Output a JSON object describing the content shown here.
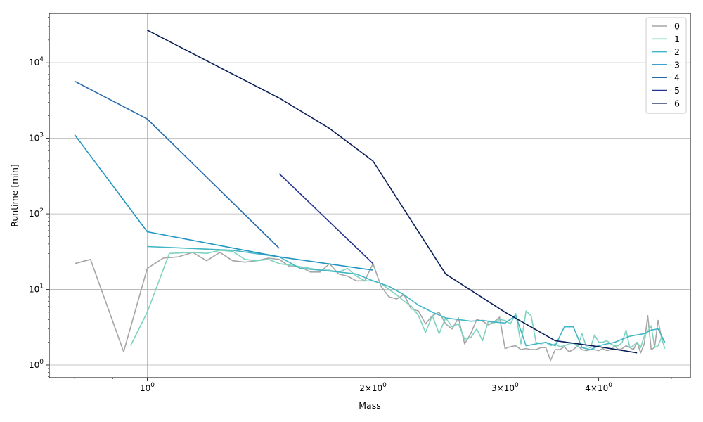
{
  "chart_data": {
    "type": "line",
    "title": "",
    "xlabel": "Mass",
    "ylabel": "Runtime [min]",
    "xscale": "log",
    "yscale": "log",
    "xlim": [
      0.74,
      5.3
    ],
    "ylim": [
      0.68,
      45000
    ],
    "grid": true,
    "legend_position": "top-right",
    "x_ticks": [
      {
        "value": 1,
        "base": "10",
        "exp": "0"
      },
      {
        "value": 2,
        "base": "2×10",
        "exp": "0"
      },
      {
        "value": 3,
        "base": "3×10",
        "exp": "0"
      },
      {
        "value": 4,
        "base": "4×10",
        "exp": "0"
      }
    ],
    "y_ticks": [
      {
        "value": 1,
        "base": "10",
        "exp": "0"
      },
      {
        "value": 10,
        "base": "10",
        "exp": "1"
      },
      {
        "value": 100,
        "base": "10",
        "exp": "2"
      },
      {
        "value": 1000,
        "base": "10",
        "exp": "3"
      },
      {
        "value": 10000,
        "base": "10",
        "exp": "4"
      }
    ],
    "series": [
      {
        "name": "0",
        "color": "#a6a6a6",
        "x": [
          0.8,
          0.84,
          0.93,
          1.0,
          1.05,
          1.1,
          1.15,
          1.2,
          1.25,
          1.3,
          1.35,
          1.4,
          1.45,
          1.5,
          1.55,
          1.6,
          1.65,
          1.7,
          1.75,
          1.8,
          1.85,
          1.9,
          1.95,
          2.0,
          2.05,
          2.1,
          2.15,
          2.2,
          2.25,
          2.3,
          2.35,
          2.4,
          2.45,
          2.5,
          2.55,
          2.6,
          2.65,
          2.7,
          2.75,
          2.8,
          2.85,
          2.9,
          2.95,
          3.0,
          3.05,
          3.1,
          3.15,
          3.2,
          3.25,
          3.3,
          3.35,
          3.4,
          3.45,
          3.5,
          3.55,
          3.6,
          3.65,
          3.7,
          3.75,
          3.8,
          3.85,
          3.9,
          3.95,
          4.0,
          4.05,
          4.1,
          4.15,
          4.2,
          4.25,
          4.3,
          4.35,
          4.4,
          4.45,
          4.5,
          4.55,
          4.6,
          4.65,
          4.7,
          4.75,
          4.8,
          4.85,
          4.9
        ],
        "y": [
          22,
          25,
          1.5,
          19,
          26,
          27,
          31,
          24,
          31,
          24,
          23,
          24,
          26,
          25,
          20,
          20,
          17,
          17,
          22,
          16,
          15,
          13,
          13,
          22,
          11,
          8.0,
          7.5,
          8.5,
          5.5,
          5.2,
          3.5,
          4.5,
          5.0,
          3.5,
          3.0,
          4.2,
          1.9,
          2.6,
          4.0,
          3.8,
          3.4,
          3.7,
          4.3,
          1.65,
          1.75,
          1.8,
          1.6,
          1.65,
          1.6,
          1.6,
          1.7,
          1.7,
          1.15,
          1.6,
          1.6,
          1.75,
          1.5,
          1.6,
          1.8,
          1.6,
          1.55,
          1.6,
          1.6,
          1.55,
          1.65,
          1.55,
          1.6,
          1.8,
          1.6,
          1.65,
          1.8,
          1.7,
          1.6,
          2.0,
          1.45,
          1.9,
          4.5,
          1.6,
          1.7,
          3.9,
          2.3,
          2.0
        ]
      },
      {
        "name": "1",
        "color": "#7dd3bf",
        "x": [
          0.95,
          1.0,
          1.07,
          1.15,
          1.2,
          1.25,
          1.3,
          1.35,
          1.4,
          1.45,
          1.5,
          1.55,
          1.6,
          1.65,
          1.7,
          1.75,
          1.8,
          1.85,
          1.9,
          1.95,
          2.0,
          2.05,
          2.1,
          2.15,
          2.2,
          2.25,
          2.3,
          2.35,
          2.4,
          2.45,
          2.5,
          2.55,
          2.6,
          2.65,
          2.7,
          2.75,
          2.8,
          2.85,
          2.9,
          2.95,
          3.0,
          3.05,
          3.1,
          3.15,
          3.2,
          3.25,
          3.3,
          3.35,
          3.4,
          3.45,
          3.5,
          3.55,
          3.6,
          3.65,
          3.7,
          3.75,
          3.8,
          3.85,
          3.9,
          3.95,
          4.0,
          4.05,
          4.1,
          4.15,
          4.2,
          4.25,
          4.3,
          4.35,
          4.4,
          4.45,
          4.5,
          4.55,
          4.6,
          4.65,
          4.7,
          4.75,
          4.8,
          4.85,
          4.9
        ],
        "y": [
          1.8,
          5.0,
          30,
          31,
          30,
          33,
          32,
          25,
          24,
          25,
          22,
          21,
          20,
          19,
          18,
          18,
          17,
          19,
          15,
          13,
          13,
          12,
          10,
          8.5,
          7.0,
          6.0,
          4.5,
          2.7,
          4.5,
          2.6,
          4.2,
          3.2,
          3.5,
          2.2,
          2.3,
          3.0,
          2.1,
          3.8,
          3.6,
          4.0,
          3.9,
          3.5,
          4.8,
          1.9,
          5.2,
          4.5,
          2.0,
          1.9,
          2.0,
          1.8,
          1.9,
          1.75,
          1.8,
          1.9,
          1.95,
          1.75,
          2.6,
          1.75,
          1.7,
          2.5,
          2.0,
          2.0,
          2.1,
          1.9,
          1.8,
          1.8,
          2.0,
          2.9,
          1.7,
          1.8,
          2.0,
          1.7,
          2.4,
          2.8,
          3.3,
          1.7,
          1.8,
          2.3,
          1.65
        ]
      },
      {
        "name": "2",
        "color": "#41b6c4",
        "x": [
          1.0,
          1.3,
          1.5,
          1.6,
          1.7,
          1.8,
          1.9,
          2.0,
          2.1,
          2.2,
          2.3,
          2.4,
          2.5,
          2.6,
          2.7,
          2.8,
          2.9,
          3.0,
          3.1,
          3.2,
          3.3,
          3.4,
          3.5,
          3.6,
          3.7,
          3.8,
          3.9,
          4.0,
          4.1,
          4.2,
          4.3,
          4.4,
          4.5,
          4.6,
          4.7,
          4.8,
          4.9
        ],
        "y": [
          37,
          33,
          27,
          19,
          18,
          17,
          16,
          13,
          11,
          8.5,
          6.2,
          5.0,
          4.2,
          4.0,
          3.8,
          3.9,
          3.7,
          3.6,
          4.5,
          1.8,
          1.9,
          2.0,
          1.8,
          3.2,
          3.2,
          1.7,
          1.6,
          1.8,
          1.9,
          2.0,
          2.2,
          2.4,
          2.5,
          2.6,
          2.9,
          3.0,
          2.0
        ]
      },
      {
        "name": "3",
        "color": "#2195c2",
        "x": [
          0.8,
          1.0,
          1.5,
          2.0
        ],
        "y": [
          1120,
          58,
          27,
          18
        ]
      },
      {
        "name": "4",
        "color": "#2369ad",
        "x": [
          0.8,
          1.0,
          1.5
        ],
        "y": [
          5700,
          1800,
          35
        ]
      },
      {
        "name": "5",
        "color": "#253494",
        "x": [
          1.5,
          2.0
        ],
        "y": [
          340,
          22
        ]
      },
      {
        "name": "6",
        "color": "#081d58",
        "x": [
          1.0,
          1.5,
          1.75,
          2.0,
          2.5,
          3.0,
          3.5,
          4.0,
          4.5
        ],
        "y": [
          27000,
          3400,
          1350,
          500,
          16,
          5.0,
          2.1,
          1.75,
          1.45
        ]
      }
    ]
  }
}
